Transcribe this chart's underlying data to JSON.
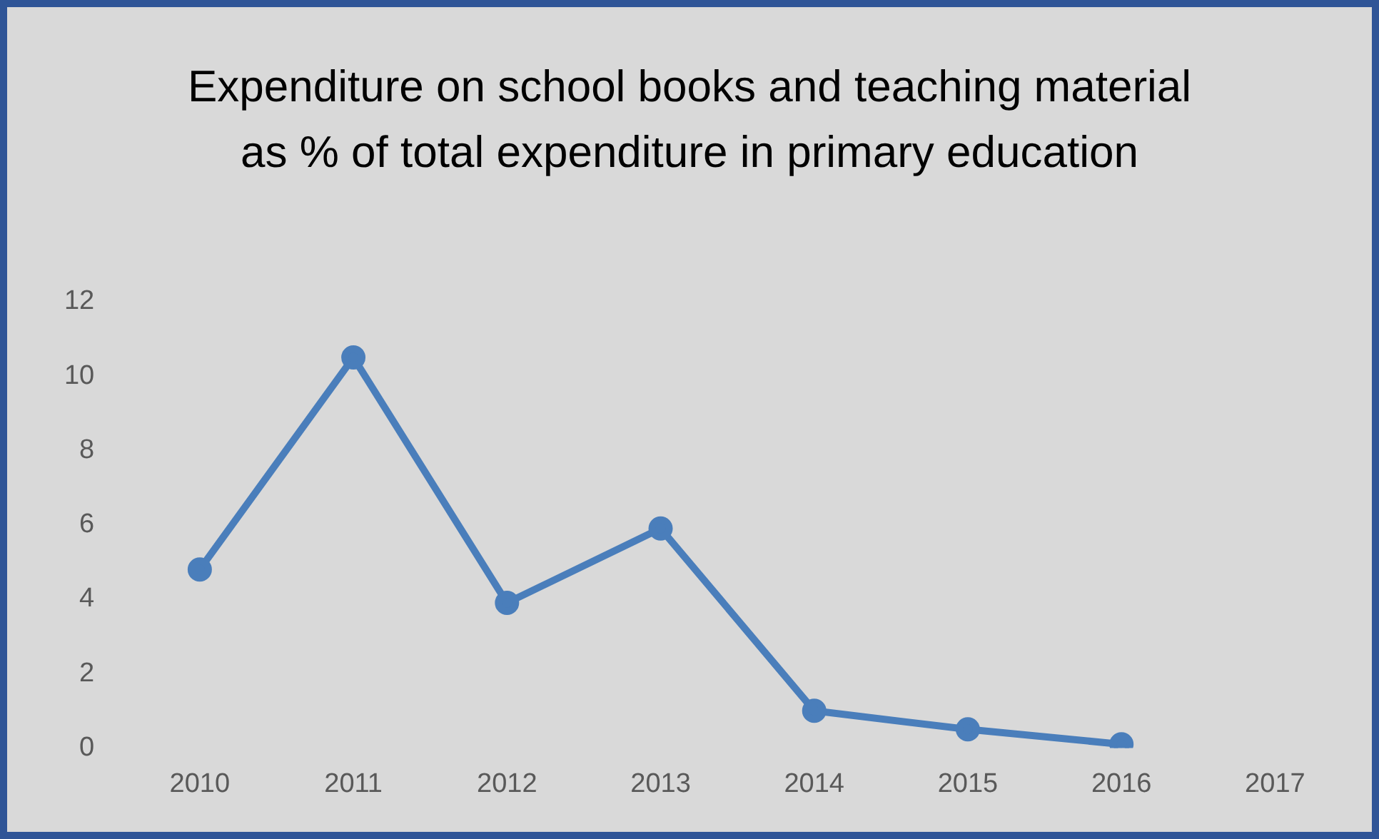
{
  "chart_data": {
    "type": "line",
    "title": "Expenditure on school books and teaching material as % of total expenditure in primary education",
    "categories": [
      "2010",
      "2011",
      "2012",
      "2013",
      "2014",
      "2015",
      "2016",
      "2017"
    ],
    "series": [
      {
        "color": "#4a7ebb",
        "values": [
          4.8,
          10.5,
          3.9,
          5.9,
          1.0,
          0.5,
          0.1,
          null
        ]
      }
    ],
    "ylim": [
      0,
      12
    ],
    "yticks": [
      0,
      2,
      4,
      6,
      8,
      10,
      12
    ],
    "grid": false,
    "legend": false,
    "marker": "circle",
    "line_style": "solid"
  }
}
